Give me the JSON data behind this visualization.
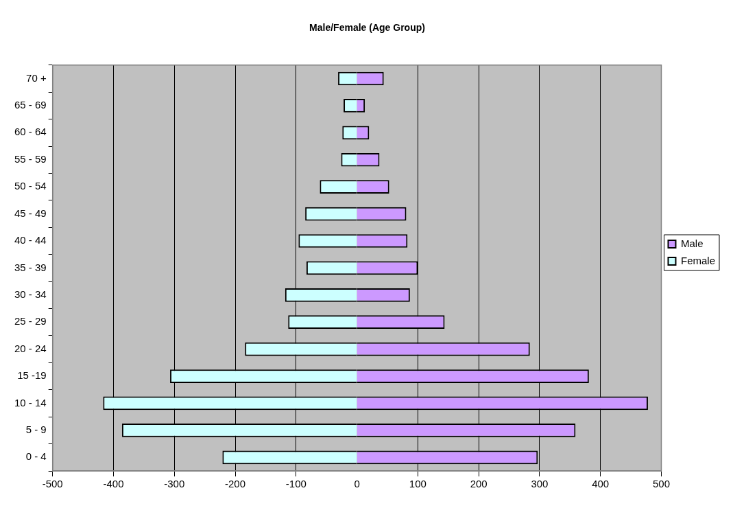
{
  "chart_data": {
    "type": "bar",
    "orientation": "horizontal",
    "stacked": true,
    "title": "Male/Female (Age Group)",
    "categories": [
      "70 +",
      "65 - 69",
      "60 - 64",
      "55 - 59",
      "50 - 54",
      "45 - 49",
      "40 - 44",
      "35 - 39",
      "30 - 34",
      "25 - 29",
      "20 - 24",
      "15 -19",
      "10 - 14",
      "5 - 9",
      "0 - 4"
    ],
    "series": [
      {
        "name": "Male",
        "color": "#cc99ff",
        "values": [
          44,
          13,
          20,
          37,
          53,
          81,
          83,
          100,
          87,
          144,
          284,
          381,
          478,
          359,
          297
        ]
      },
      {
        "name": "Female",
        "color": "#ccffff",
        "values": [
          -31,
          -22,
          -24,
          -26,
          -61,
          -85,
          -96,
          -83,
          -118,
          -113,
          -184,
          -307,
          -417,
          -386,
          -221
        ]
      }
    ],
    "xlim": [
      -500,
      500
    ],
    "xticks": [
      -500,
      -400,
      -300,
      -200,
      -100,
      0,
      100,
      200,
      300,
      400,
      500
    ],
    "grid": "x",
    "legend": "right"
  }
}
